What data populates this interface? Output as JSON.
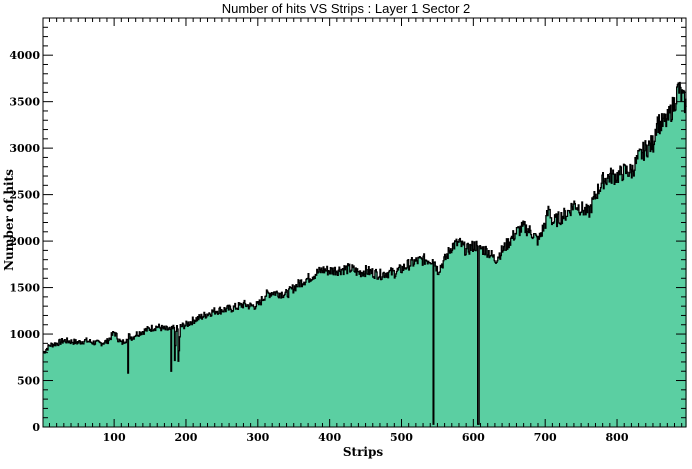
{
  "chart_data": {
    "type": "area",
    "title": "Number of hits VS Strips : Layer 1 Sector 2",
    "xlabel": "Strips",
    "ylabel": "Number of hits",
    "xlim": [
      1,
      896
    ],
    "ylim": [
      0,
      4400
    ],
    "xticks": [
      100,
      200,
      300,
      400,
      500,
      600,
      700,
      800
    ],
    "yticks": [
      0,
      500,
      1000,
      1500,
      2000,
      2500,
      3000,
      3500,
      4000
    ],
    "grid": false,
    "legend": "none",
    "fill_color": "#5bcfa2",
    "line_color": "#000000",
    "series": [
      {
        "x": [
          1,
          10,
          20,
          30,
          40,
          50,
          60,
          70,
          80,
          90,
          100,
          105,
          110,
          115,
          118,
          119,
          120,
          125,
          130,
          140,
          150,
          160,
          170,
          178,
          179,
          180,
          183,
          184,
          186,
          188,
          189,
          192,
          200,
          210,
          220,
          230,
          240,
          250,
          260,
          270,
          280,
          290,
          300,
          310,
          320,
          330,
          340,
          350,
          360,
          370,
          380,
          390,
          400,
          410,
          420,
          430,
          440,
          450,
          460,
          470,
          480,
          490,
          500,
          510,
          520,
          530,
          540,
          543,
          544,
          545,
          550,
          560,
          570,
          580,
          590,
          600,
          605,
          606,
          608,
          610,
          620,
          630,
          640,
          650,
          660,
          670,
          680,
          690,
          700,
          705,
          710,
          720,
          730,
          740,
          750,
          760,
          770,
          780,
          790,
          800,
          810,
          820,
          830,
          840,
          850,
          855,
          860,
          870,
          880,
          885,
          890,
          896
        ],
        "y": [
          800,
          880,
          900,
          930,
          920,
          910,
          930,
          910,
          900,
          920,
          1020,
          950,
          900,
          940,
          940,
          580,
          980,
          960,
          1000,
          1030,
          1060,
          1080,
          1050,
          1050,
          600,
          1050,
          1060,
          700,
          1060,
          1050,
          700,
          1080,
          1100,
          1150,
          1180,
          1220,
          1250,
          1260,
          1270,
          1290,
          1320,
          1300,
          1310,
          1420,
          1450,
          1440,
          1430,
          1500,
          1560,
          1600,
          1650,
          1690,
          1680,
          1690,
          1700,
          1700,
          1660,
          1680,
          1660,
          1640,
          1660,
          1660,
          1700,
          1750,
          1780,
          1800,
          1800,
          1800,
          30,
          1800,
          1680,
          1800,
          1950,
          1980,
          1900,
          1950,
          1950,
          30,
          1900,
          1920,
          1890,
          1800,
          1900,
          2000,
          2100,
          2150,
          2100,
          2000,
          2200,
          2350,
          2200,
          2250,
          2300,
          2400,
          2350,
          2300,
          2500,
          2650,
          2700,
          2700,
          2750,
          2750,
          2900,
          3000,
          3050,
          3300,
          3250,
          3300,
          3500,
          3650,
          3550,
          3450
        ]
      }
    ]
  }
}
